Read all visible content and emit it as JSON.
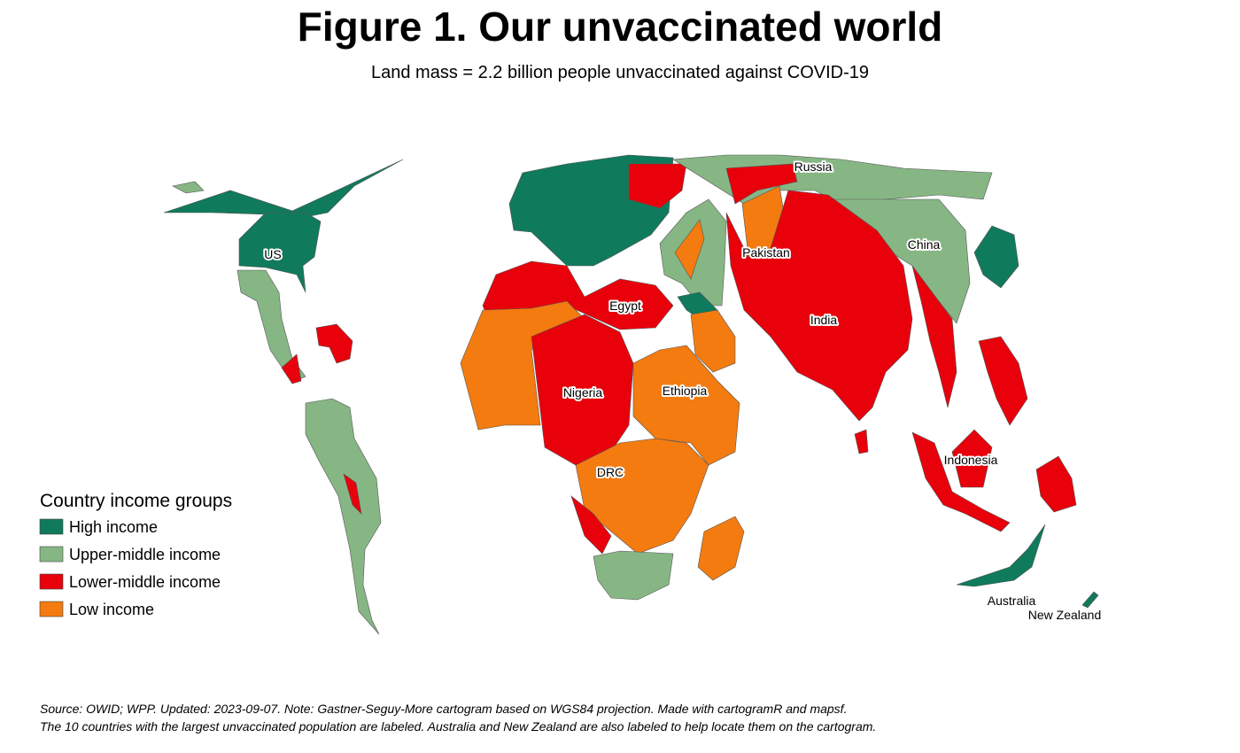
{
  "title": "Figure 1. Our unvaccinated world",
  "subtitle": "Land mass = 2.2 billion people unvaccinated against COVID-19",
  "legend": {
    "title": "Country income groups",
    "items": [
      {
        "label": "High income",
        "color": "#107a5c"
      },
      {
        "label": "Upper-middle income",
        "color": "#87b685"
      },
      {
        "label": "Lower-middle income",
        "color": "#e8000b"
      },
      {
        "label": "Low income",
        "color": "#f47b0f"
      }
    ]
  },
  "labels": [
    "US",
    "Russia",
    "Pakistan",
    "China",
    "Egypt",
    "India",
    "Nigeria",
    "Ethiopia",
    "DRC",
    "Indonesia",
    "Australia",
    "New Zealand"
  ],
  "source": [
    "Source: OWID; WPP. Updated: 2023-09-07. Note: Gastner-Seguy-More cartogram based on WGS84 projection. Made with cartogramR and mapsf.",
    "The 10 countries with the largest unvaccinated population are labeled. Australia and New Zealand are also labeled to help locate them on the cartogram."
  ]
}
